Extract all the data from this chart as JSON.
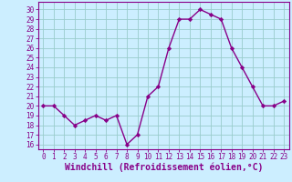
{
  "x": [
    0,
    1,
    2,
    3,
    4,
    5,
    6,
    7,
    8,
    9,
    10,
    11,
    12,
    13,
    14,
    15,
    16,
    17,
    18,
    19,
    20,
    21,
    22,
    23
  ],
  "y": [
    20,
    20,
    19,
    18,
    18.5,
    19,
    18.5,
    19,
    16,
    17,
    21,
    22,
    26,
    29,
    29,
    30,
    29.5,
    29,
    26,
    24,
    22,
    20,
    20,
    20.5
  ],
  "line_color": "#880088",
  "marker": "D",
  "marker_size": 2.2,
  "bg_color": "#cceeff",
  "grid_color": "#99cccc",
  "xlabel": "Windchill (Refroidissement éolien,°C)",
  "xlabel_fontsize": 7,
  "yticks": [
    16,
    17,
    18,
    19,
    20,
    21,
    22,
    23,
    24,
    25,
    26,
    27,
    28,
    29,
    30
  ],
  "ylim": [
    15.5,
    30.8
  ],
  "xlim": [
    -0.5,
    23.5
  ],
  "xticks": [
    0,
    1,
    2,
    3,
    4,
    5,
    6,
    7,
    8,
    9,
    10,
    11,
    12,
    13,
    14,
    15,
    16,
    17,
    18,
    19,
    20,
    21,
    22,
    23
  ],
  "line_width": 1.0,
  "tick_fontsize": 5.5
}
